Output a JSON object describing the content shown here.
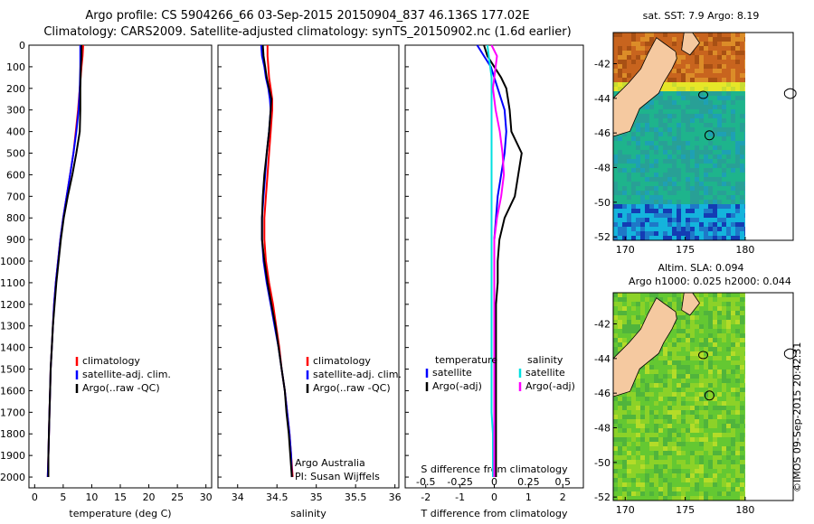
{
  "header": {
    "title_line1": "Argo profile: CS 5904266_66 03-Sep-2015 20150904_837 46.136S 177.02E",
    "title_line2": "Climatology: CARS2009. Satellite-adjusted climatology: synTS_20150902.nc (1.6d earlier)"
  },
  "map_top_title": "sat. SST: 7.9 Argo: 8.19",
  "map_bottom_title1": "Altim. SLA: 0.094",
  "map_bottom_title2": "Argo h1000: 0.025 h2000: 0.044",
  "stamp": "©IMOS 09-Sep-2015 20:42:31",
  "colors": {
    "climatology": "#ff0000",
    "satellite": "#0000ff",
    "argo": "#000000",
    "sal_satellite": "#00e0e0",
    "sal_argo": "#ff00ff",
    "land": "#f5c9a0"
  },
  "chart_data": [
    {
      "type": "line",
      "title": "",
      "xlabel": "temperature (deg C)",
      "ylabel": "",
      "xlim": [
        -1,
        31
      ],
      "ylim": [
        2050,
        0
      ],
      "x_ticks": [
        "0",
        "5",
        "10",
        "15",
        "20",
        "25",
        "30"
      ],
      "y_ticks": [
        "0",
        "100",
        "200",
        "300",
        "400",
        "500",
        "600",
        "700",
        "800",
        "900",
        "1000",
        "1100",
        "1200",
        "1300",
        "1400",
        "1500",
        "1600",
        "1700",
        "1800",
        "1900",
        "2000"
      ],
      "depth": [
        0,
        50,
        100,
        200,
        300,
        400,
        500,
        600,
        700,
        800,
        900,
        1000,
        1100,
        1200,
        1300,
        1400,
        1500,
        1600,
        1700,
        1800,
        1900,
        2000
      ],
      "legend": [
        "climatology",
        "satellite-adj. clim.",
        "Argo(..raw -QC)"
      ],
      "series": [
        {
          "name": "climatology",
          "values": [
            8.5,
            8.4,
            8.2,
            7.9,
            7.6,
            7.2,
            6.8,
            6.2,
            5.6,
            5.0,
            4.5,
            4.1,
            3.7,
            3.4,
            3.2,
            3.0,
            2.8,
            2.7,
            2.6,
            2.5,
            2.4,
            2.3
          ]
        },
        {
          "name": "satellite-adj. clim.",
          "values": [
            8.0,
            8.0,
            8.0,
            7.9,
            7.7,
            7.3,
            6.8,
            6.2,
            5.6,
            5.0,
            4.5,
            4.1,
            3.7,
            3.4,
            3.2,
            3.0,
            2.8,
            2.7,
            2.6,
            2.5,
            2.4,
            2.3
          ]
        },
        {
          "name": "Argo(..raw -QC)",
          "values": [
            8.2,
            8.2,
            8.1,
            8.0,
            8.0,
            7.9,
            7.3,
            6.6,
            5.8,
            5.1,
            4.6,
            4.2,
            3.8,
            3.5,
            3.2,
            3.0,
            2.8,
            2.7,
            2.6,
            2.5,
            2.4,
            2.4
          ]
        }
      ]
    },
    {
      "type": "line",
      "title": "",
      "xlabel": "salinity",
      "ylabel": "",
      "xlim": [
        33.75,
        36.05
      ],
      "ylim": [
        2050,
        0
      ],
      "x_ticks": [
        "34",
        "34.5",
        "35",
        "35.5",
        "36"
      ],
      "depth": [
        0,
        50,
        100,
        150,
        200,
        250,
        300,
        400,
        500,
        600,
        700,
        800,
        900,
        1000,
        1100,
        1200,
        1300,
        1400,
        1500,
        1600,
        1700,
        1800,
        1900,
        2000
      ],
      "legend": [
        "climatology",
        "satellite-adj. clim.",
        "Argo(..raw -QC)"
      ],
      "annotation": [
        "Argo Australia",
        "PI: Susan Wijffels"
      ],
      "series": [
        {
          "name": "climatology",
          "values": [
            34.38,
            34.38,
            34.39,
            34.4,
            34.42,
            34.44,
            34.44,
            34.42,
            34.4,
            34.38,
            34.36,
            34.34,
            34.34,
            34.36,
            34.4,
            34.45,
            34.49,
            34.53,
            34.56,
            34.6,
            34.63,
            34.66,
            34.68,
            34.7
          ]
        },
        {
          "name": "satellite-adj. clim.",
          "values": [
            34.3,
            34.31,
            34.34,
            34.36,
            34.39,
            34.41,
            34.42,
            34.4,
            34.37,
            34.35,
            34.33,
            34.31,
            34.31,
            34.33,
            34.37,
            34.42,
            34.47,
            34.52,
            34.56,
            34.6,
            34.63,
            34.66,
            34.68,
            34.69
          ]
        },
        {
          "name": "Argo(..raw -QC)",
          "values": [
            34.32,
            34.33,
            34.35,
            34.37,
            34.4,
            34.43,
            34.42,
            34.4,
            34.37,
            34.34,
            34.32,
            34.31,
            34.31,
            34.34,
            34.38,
            34.43,
            34.48,
            34.52,
            34.56,
            34.6,
            34.62,
            34.65,
            34.67,
            34.69
          ]
        }
      ]
    },
    {
      "type": "line",
      "title": "",
      "xlabel": "T difference from climatology",
      "ylabel": "",
      "x2label": "S difference from climatology",
      "xlim": [
        -2.6,
        2.6
      ],
      "ylim": [
        2050,
        0
      ],
      "x_ticks": [
        "-2",
        "-1",
        "0",
        "1",
        "2"
      ],
      "x2_ticks": [
        "-0.5",
        "-0.25",
        "0",
        "0.25",
        "0.5"
      ],
      "x2lim": [
        -0.65,
        0.65
      ],
      "depth": [
        0,
        50,
        100,
        150,
        200,
        250,
        300,
        400,
        500,
        600,
        700,
        800,
        900,
        1000,
        1100,
        1200,
        1300,
        1400,
        1500,
        1600,
        1700,
        1800,
        1900,
        2000
      ],
      "legend_temperature": [
        "temperature",
        "satellite",
        "Argo(-adj)"
      ],
      "legend_salinity": [
        "salinity",
        "satellite",
        "Argo(-adj)"
      ],
      "series": [
        {
          "name": "satellite",
          "values": [
            -0.5,
            -0.3,
            -0.1,
            0.0,
            0.1,
            0.2,
            0.3,
            0.35,
            0.3,
            0.2,
            0.1,
            0.05,
            0.0,
            0.0,
            0.0,
            0.0,
            0.0,
            0.0,
            0.0,
            0.0,
            0.0,
            0.0,
            0.0,
            0.0
          ]
        },
        {
          "name": "Argo(-adj)",
          "values": [
            -0.3,
            -0.2,
            0.0,
            0.2,
            0.35,
            0.4,
            0.45,
            0.5,
            0.8,
            0.7,
            0.6,
            0.3,
            0.15,
            0.1,
            0.1,
            0.05,
            0.05,
            0.05,
            0.05,
            0.05,
            0.05,
            0.05,
            0.05,
            0.05
          ]
        },
        {
          "name": "satellite",
          "values": [
            -0.05,
            -0.04,
            -0.03,
            -0.02,
            -0.02,
            -0.02,
            -0.02,
            -0.02,
            -0.02,
            -0.02,
            -0.02,
            -0.02,
            -0.02,
            -0.02,
            -0.02,
            -0.02,
            -0.02,
            -0.02,
            -0.02,
            -0.02,
            -0.02,
            -0.01,
            -0.01,
            -0.01
          ],
          "axis": "salinity"
        },
        {
          "name": "Argo(-adj)",
          "values": [
            -0.02,
            0.02,
            0.01,
            0.0,
            -0.01,
            0.0,
            0.01,
            0.04,
            0.06,
            0.07,
            0.05,
            0.02,
            0.0,
            0.0,
            0.0,
            0.0,
            0.0,
            0.0,
            0.0,
            0.0,
            0.0,
            0.0,
            0.0,
            0.0
          ],
          "axis": "salinity"
        }
      ]
    },
    {
      "type": "heatmap",
      "title": "sat. SST: 7.9 Argo: 8.19",
      "x_ticks": [
        "170",
        "175",
        "180"
      ],
      "y_ticks": [
        "-42",
        "-44",
        "-46",
        "-48",
        "-50",
        "-52"
      ],
      "xlim": [
        169,
        184
      ],
      "ylim": [
        -52.2,
        -40.2
      ]
    },
    {
      "type": "heatmap",
      "title": "Altim. SLA: 0.094",
      "x_ticks": [
        "170",
        "175",
        "180"
      ],
      "y_ticks": [
        "-42",
        "-44",
        "-46",
        "-48",
        "-50",
        "-52"
      ],
      "xlim": [
        169,
        184
      ],
      "ylim": [
        -52.2,
        -40.2
      ]
    }
  ]
}
